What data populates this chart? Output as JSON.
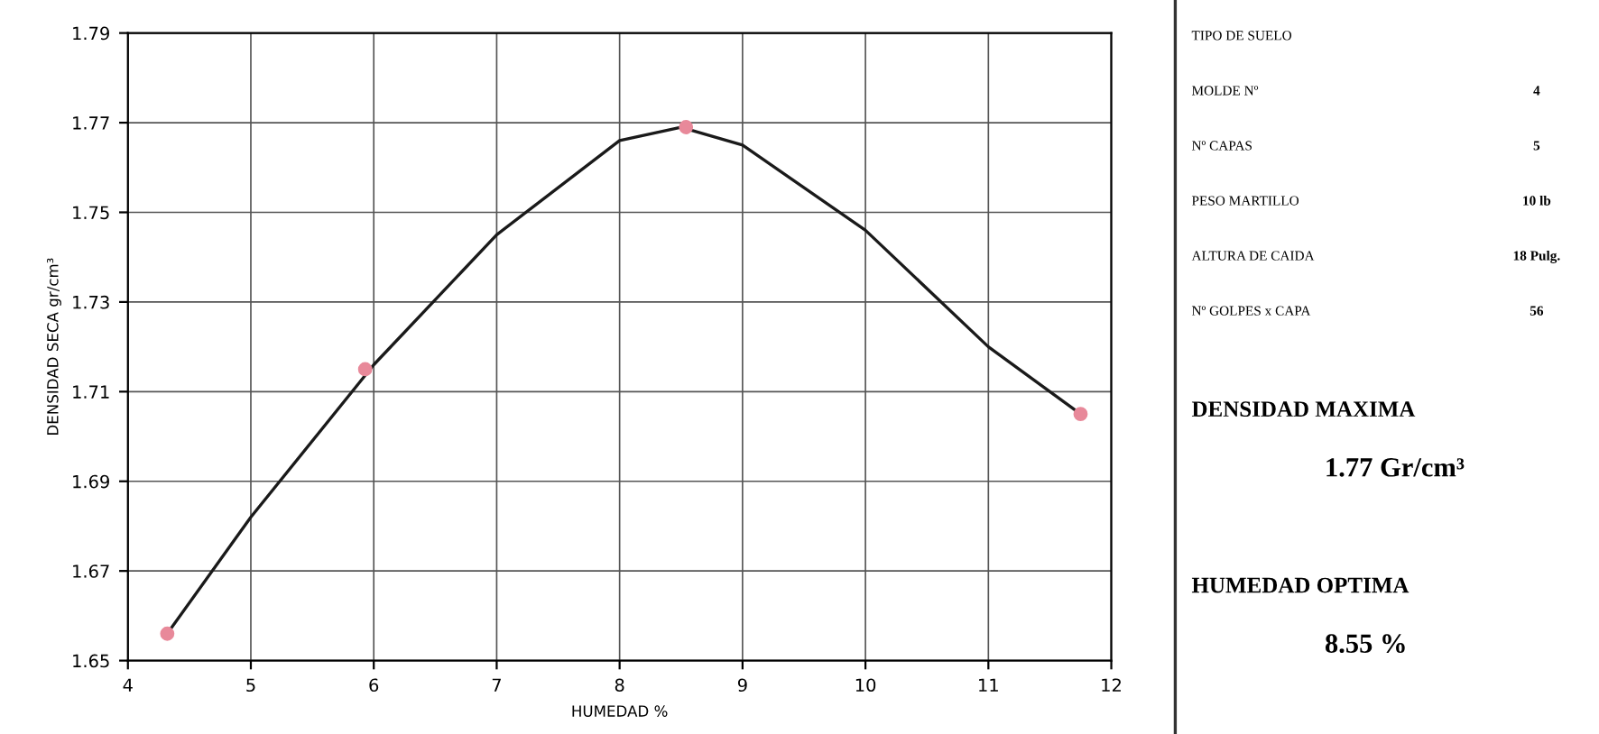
{
  "chart_data": [
    {
      "type": "line",
      "xlabel": "HUMEDAD %",
      "ylabel": "DENSIDAD SECA gr/cm³",
      "xlim": [
        4,
        12
      ],
      "ylim": [
        1.65,
        1.79
      ],
      "xticks": [
        4,
        5,
        6,
        7,
        8,
        9,
        10,
        11,
        12
      ],
      "yticks": [
        1.65,
        1.67,
        1.69,
        1.71,
        1.73,
        1.75,
        1.77,
        1.79
      ],
      "grid": true,
      "series": [
        {
          "type": "line",
          "color": "#1a1a1a",
          "marker": "none",
          "x": [
            4.32,
            5,
            6,
            7,
            8,
            8.5,
            9,
            10,
            11,
            11.75
          ],
          "values": [
            1.656,
            1.682,
            1.716,
            1.745,
            1.766,
            1.769,
            1.765,
            1.746,
            1.72,
            1.705
          ]
        },
        {
          "type": "scatter",
          "color": "#e8899a",
          "marker": "circle",
          "x": [
            4.32,
            5.93,
            8.54,
            11.75
          ],
          "values": [
            1.656,
            1.715,
            1.769,
            1.705
          ]
        }
      ]
    },
    {
      "type": "other",
      "annotations": [
        "TIPO DE SUELO",
        "MOLDE Nº",
        "4",
        "Nº CAPAS",
        "5",
        "PESO MARTILLO",
        "10 lb",
        "ALTURA DE CAIDA",
        "18 Pulg.",
        "Nº GOLPES x CAPA",
        "56",
        "DENSIDAD MAXIMA",
        "1.77 Gr/cm³",
        "HUMEDAD OPTIMA",
        "8.55 %"
      ]
    }
  ]
}
